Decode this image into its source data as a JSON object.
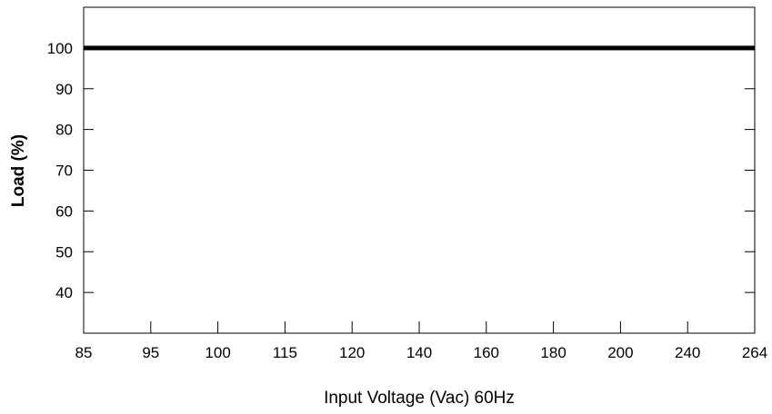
{
  "chart_data": {
    "type": "line",
    "title": "",
    "xlabel": "Input Voltage (Vac) 60Hz",
    "ylabel": "Load (%)",
    "x_ticks": [
      "85",
      "95",
      "100",
      "115",
      "120",
      "140",
      "160",
      "180",
      "200",
      "240",
      "264"
    ],
    "y_ticks": [
      40,
      50,
      60,
      70,
      80,
      90,
      100
    ],
    "ylim": [
      30,
      110
    ],
    "x_scale": "categorical (evenly spaced tick labels)",
    "grid": false,
    "legend": "none",
    "series": [
      {
        "x": [
          "85",
          "264"
        ],
        "values": [
          100,
          100
        ],
        "color": "#000000"
      }
    ]
  }
}
